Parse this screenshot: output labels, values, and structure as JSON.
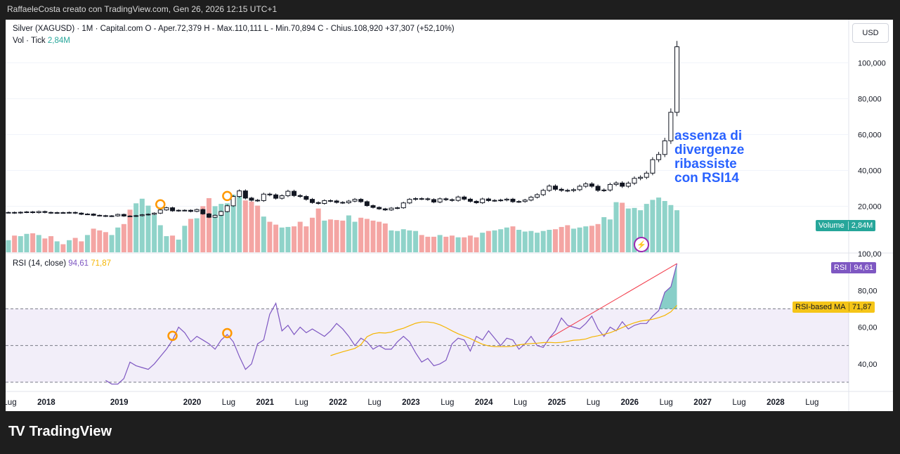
{
  "caption": "RaffaeleCosta creato con TradingView.com, Gen 26, 2026 12:15 UTC+1",
  "legend": {
    "main": "Silver (XAGUSD) · 1M · Capital.com  O - Aper.72,379  H - Max.110,111  L - Min.70,894  C - Chius.108,920  +37,307 (+52,10%)",
    "vol_label": "Vol · Tick",
    "vol_value": "2,84M",
    "rsi_label": "RSI (14, close)",
    "rsi_value": "94,61",
    "rsi_ma_value": "71,87"
  },
  "currency_button": "USD",
  "tags": {
    "volume_name": "Volume",
    "volume_value": "2,84M",
    "rsi_name": "RSI",
    "rsi_value": "94,61",
    "rsima_name": "RSI-based MA",
    "rsima_value": "71,87"
  },
  "annotation": [
    "assenza di",
    "divergenze",
    "ribassiste",
    "con RSI14"
  ],
  "footer_brand": "TradingView",
  "colors": {
    "up": "#26a69a",
    "down": "#ef5350",
    "rsi": "#7e57c2",
    "rsi_ma": "#f5b500",
    "trendline": "#f23645",
    "annotation": "#2962ff",
    "marker": "#ff9800"
  },
  "chart_data": {
    "type": "candlestick",
    "title": "Silver (XAGUSD)",
    "timeframe": "1M",
    "x_ticks": [
      "Lug",
      "2018",
      "2019",
      "2020",
      "Lug",
      "2021",
      "Lug",
      "2022",
      "Lug",
      "2023",
      "Lug",
      "2024",
      "Lug",
      "2025",
      "Lug",
      "2026",
      "Lug",
      "2027",
      "Lug",
      "2028",
      "Lug"
    ],
    "price_ticks": [
      "100,000",
      "80,000",
      "60,000",
      "40,000",
      "20,000"
    ],
    "price_range": [
      -6,
      124
    ],
    "closes": [
      16.6,
      16.3,
      16.7,
      16.9,
      16.5,
      17.1,
      16.6,
      16.3,
      16.5,
      16.4,
      16.6,
      16.2,
      15.6,
      15.7,
      15.0,
      14.8,
      14.5,
      14.7,
      15.5,
      14.6,
      14.5,
      14.8,
      15.3,
      15.6,
      16.2,
      18.0,
      19.2,
      17.5,
      17.8,
      17.8,
      17.2,
      18.2,
      15.8,
      13.9,
      15.0,
      17.1,
      20.3,
      25.5,
      28.6,
      24.6,
      23.4,
      23.2,
      26.8,
      26.4,
      24.5,
      25.9,
      28.4,
      26.0,
      25.5,
      23.9,
      22.1,
      21.6,
      23.2,
      23.0,
      22.2,
      22.0,
      22.9,
      23.9,
      22.6,
      20.4,
      19.4,
      18.6,
      18.0,
      19.0,
      19.2,
      21.9,
      23.9,
      24.3,
      24.2,
      23.8,
      22.4,
      24.2,
      23.7,
      23.3,
      25.2,
      24.0,
      22.8,
      22.0,
      24.1,
      23.2,
      23.3,
      23.5,
      24.0,
      22.6,
      22.7,
      23.5,
      25.1,
      26.5,
      28.9,
      31.3,
      29.5,
      28.9,
      28.8,
      29.3,
      31.2,
      32.5,
      31.2,
      28.9,
      29.1,
      32.2,
      33.0,
      31.2,
      32.9,
      35.6,
      36.2,
      38.5,
      46.0,
      48.9,
      56.5,
      72.4,
      108.9
    ],
    "volume": {
      "unit": "relative, last bar = 2.84M",
      "values": [
        0.21,
        0.29,
        0.28,
        0.32,
        0.33,
        0.3,
        0.24,
        0.28,
        0.19,
        0.14,
        0.21,
        0.25,
        0.19,
        0.3,
        0.41,
        0.38,
        0.35,
        0.3,
        0.43,
        0.49,
        0.74,
        0.85,
        0.93,
        0.81,
        0.65,
        0.47,
        0.28,
        0.29,
        0.22,
        0.46,
        0.58,
        0.59,
        0.8,
        0.94,
        0.8,
        0.84,
        0.85,
        1.0,
        0.98,
        0.9,
        0.88,
        0.81,
        0.62,
        0.53,
        0.48,
        0.43,
        0.44,
        0.45,
        0.53,
        0.45,
        0.6,
        0.76,
        0.55,
        0.57,
        0.56,
        0.55,
        0.64,
        0.53,
        0.6,
        0.58,
        0.55,
        0.53,
        0.5,
        0.38,
        0.37,
        0.4,
        0.38,
        0.37,
        0.3,
        0.27,
        0.27,
        0.3,
        0.27,
        0.29,
        0.26,
        0.26,
        0.29,
        0.26,
        0.34,
        0.37,
        0.38,
        0.4,
        0.43,
        0.45,
        0.39,
        0.36,
        0.37,
        0.34,
        0.37,
        0.39,
        0.4,
        0.44,
        0.47,
        0.41,
        0.43,
        0.45,
        0.46,
        0.49,
        0.61,
        0.57,
        0.87,
        0.86,
        0.76,
        0.77,
        0.73,
        0.84,
        0.91,
        0.95,
        0.89,
        0.82,
        0.73
      ],
      "up": [
        true,
        false,
        true,
        true,
        false,
        true,
        false,
        false,
        true,
        false,
        true,
        false,
        false,
        true,
        false,
        false,
        false,
        true,
        true,
        false,
        false,
        true,
        true,
        true,
        true,
        true,
        true,
        false,
        true,
        true,
        false,
        true,
        false,
        false,
        true,
        true,
        true,
        true,
        true,
        false,
        false,
        false,
        true,
        false,
        false,
        true,
        true,
        false,
        false,
        false,
        false,
        false,
        true,
        false,
        false,
        false,
        true,
        true,
        false,
        false,
        false,
        false,
        false,
        true,
        true,
        true,
        true,
        true,
        false,
        false,
        false,
        true,
        false,
        false,
        true,
        false,
        false,
        false,
        true,
        false,
        true,
        true,
        true,
        false,
        true,
        true,
        true,
        true,
        true,
        true,
        false,
        false,
        false,
        true,
        true,
        true,
        false,
        false,
        true,
        true,
        true,
        false,
        true,
        true,
        true,
        true,
        true,
        true,
        true,
        true,
        true
      ]
    },
    "rsi": {
      "period": 14,
      "range": [
        25,
        100
      ],
      "ticks": [
        "100,00",
        "80,00",
        "60,00",
        "40,00"
      ],
      "upper_band": 70,
      "mid_band": 50,
      "lower_band": 30,
      "values": [
        31,
        29,
        29,
        32,
        41,
        39,
        38,
        37,
        40,
        44,
        48,
        53,
        60,
        57,
        52,
        55,
        53,
        51,
        48,
        53,
        56,
        52,
        44,
        37,
        40,
        51,
        53,
        67,
        73,
        58,
        61,
        56,
        60,
        57,
        59,
        57,
        55,
        58,
        62,
        59,
        55,
        50,
        54,
        52,
        48,
        50,
        48,
        48,
        52,
        55,
        52,
        46,
        41,
        43,
        39,
        40,
        42,
        51,
        54,
        53,
        47,
        55,
        53,
        58,
        54,
        50,
        54,
        53,
        48,
        51,
        55,
        50,
        49,
        54,
        58,
        65,
        61,
        60,
        59,
        62,
        66,
        59,
        55,
        60,
        58,
        63,
        59,
        61,
        62,
        62,
        66,
        69,
        79,
        82,
        94.61
      ],
      "ma_values": [
        null,
        null,
        null,
        null,
        null,
        null,
        null,
        null,
        null,
        null,
        null,
        null,
        null,
        null,
        44.5,
        45.6,
        46.6,
        47.5,
        48.4,
        50.5,
        54.8,
        56.4,
        57.0,
        56.8,
        57.3,
        58.5,
        59.4,
        60.8,
        62.1,
        62.8,
        62.8,
        62.4,
        61.3,
        59.8,
        58.0,
        56.4,
        55.1,
        53.8,
        52.2,
        50.7,
        49.8,
        49.4,
        49.4,
        49.4,
        49.6,
        50.4,
        50.8,
        51.1,
        51.3,
        51.6,
        51.7,
        51.5,
        51.7,
        52.3,
        52.9,
        53.1,
        53.6,
        54.7,
        55.3,
        56.1,
        57.0,
        58.3,
        59.8,
        61.2,
        62.4,
        63.3,
        63.8,
        64.3,
        65.2,
        66.4,
        68.4,
        71.87
      ]
    }
  }
}
